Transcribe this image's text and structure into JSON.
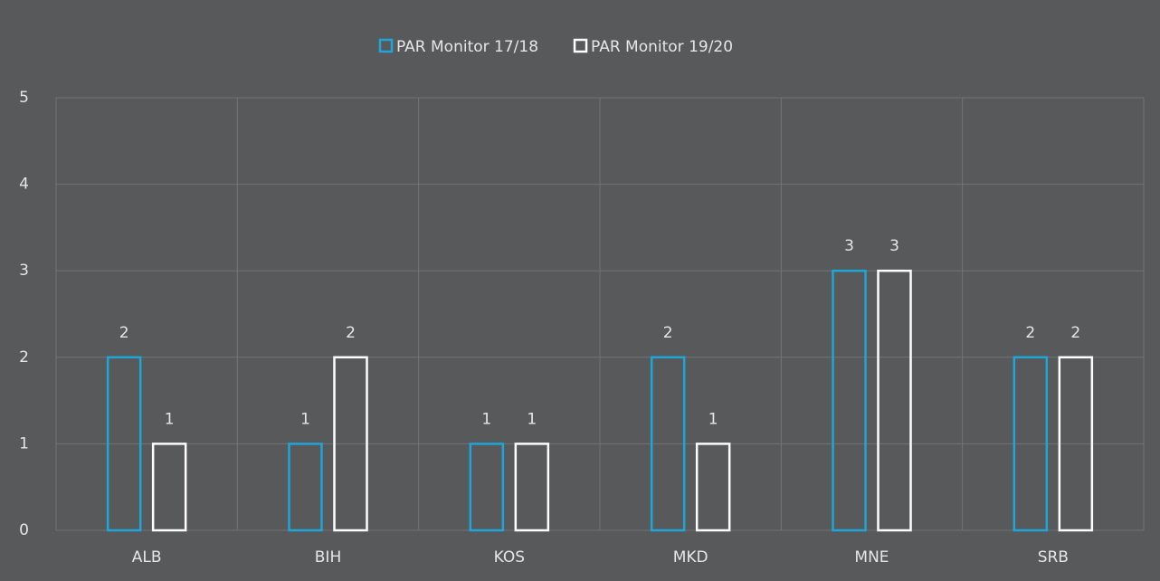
{
  "chart_data": {
    "type": "bar",
    "categories": [
      "ALB",
      "BIH",
      "KOS",
      "MKD",
      "MNE",
      "SRB"
    ],
    "series": [
      {
        "name": "PAR Monitor 17/18",
        "color": "#1ea6d9",
        "values": [
          2,
          1,
          1,
          2,
          3,
          2
        ]
      },
      {
        "name": "PAR Monitor 19/20",
        "color": "#ffffff",
        "values": [
          1,
          2,
          1,
          1,
          3,
          2
        ]
      }
    ],
    "ylim": [
      0,
      5
    ],
    "yticks": [
      0,
      1,
      2,
      3,
      4,
      5
    ],
    "grid": true,
    "legend": "top"
  }
}
